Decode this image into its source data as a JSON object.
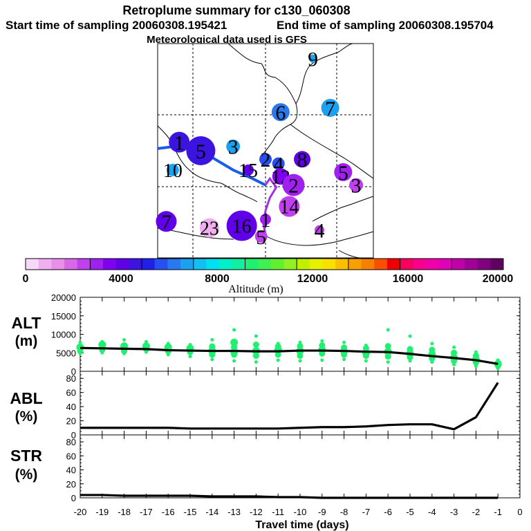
{
  "header": {
    "title": "Retroplume summary for c130_060308",
    "start_sampling": "Start time of sampling 20060308.195421",
    "end_sampling": "End time of sampling 20060308.195704",
    "met_data": "Meteorological data used is GFS"
  },
  "colors": {
    "scale": [
      "#f8d8f8",
      "#f0b0f0",
      "#e890e8",
      "#d868e8",
      "#c040f0",
      "#a020f0",
      "#8000f0",
      "#6000e8",
      "#3c14e0",
      "#2020e8",
      "#2850f0",
      "#2878f0",
      "#1ca0f0",
      "#10c0f0",
      "#00e0f0",
      "#00f0c8",
      "#10f0a0",
      "#20f070",
      "#40f050",
      "#60f030",
      "#90f020",
      "#c0f000",
      "#e8f000",
      "#f8e000",
      "#f8c000",
      "#f8a000",
      "#f88000",
      "#f85000",
      "#f00000",
      "#f80060",
      "#f8008c",
      "#f000a8",
      "#e000b8",
      "#c000a8",
      "#a00098",
      "#800080",
      "#600060"
    ],
    "trajectory": "#1a5ce8",
    "trajectory_late": "#a030e8"
  },
  "map": {
    "clusters": [
      {
        "label": "9",
        "x": 72,
        "y": 93,
        "r": 6,
        "color": "#1ca0f0"
      },
      {
        "label": "7",
        "x": 80,
        "y": 70,
        "r": 13,
        "color": "#1ca0f0"
      },
      {
        "label": "6",
        "x": 57,
        "y": 68,
        "r": 13,
        "color": "#2878f0"
      },
      {
        "label": "1",
        "x": 10,
        "y": 54,
        "r": 15,
        "color": "#3c14e0"
      },
      {
        "label": "5",
        "x": 20,
        "y": 50,
        "r": 21,
        "color": "#3c14e0"
      },
      {
        "label": "3",
        "x": 35,
        "y": 52,
        "r": 10,
        "color": "#1ca0f0"
      },
      {
        "label": "2",
        "x": 50,
        "y": 46,
        "r": 9,
        "color": "#2850f0"
      },
      {
        "label": "4",
        "x": 56,
        "y": 44,
        "r": 9,
        "color": "#2850f0"
      },
      {
        "label": "8",
        "x": 67,
        "y": 46,
        "r": 12,
        "color": "#6000e8"
      },
      {
        "label": "10",
        "x": 7,
        "y": 41,
        "r": 9,
        "color": "#1ca0f0"
      },
      {
        "label": "15",
        "x": 42,
        "y": 41,
        "r": 8,
        "color": "#6000e8"
      },
      {
        "label": "12",
        "x": 57,
        "y": 38,
        "r": 12,
        "color": "#8000f0"
      },
      {
        "label": "2",
        "x": 63,
        "y": 34,
        "r": 16,
        "color": "#a020f0"
      },
      {
        "label": "5",
        "x": 86,
        "y": 40,
        "r": 13,
        "color": "#a020f0"
      },
      {
        "label": "3",
        "x": 92,
        "y": 34,
        "r": 10,
        "color": "#c040f0"
      },
      {
        "label": "14",
        "x": 61,
        "y": 24,
        "r": 15,
        "color": "#c040f0"
      },
      {
        "label": "4",
        "x": 75,
        "y": 13,
        "r": 7,
        "color": "#c040f0"
      },
      {
        "label": "1",
        "x": 50,
        "y": 18,
        "r": 8,
        "color": "#a020f0"
      },
      {
        "label": "7",
        "x": 4,
        "y": 17,
        "r": 15,
        "color": "#6000e8"
      },
      {
        "label": "23",
        "x": 24,
        "y": 14,
        "r": 14,
        "color": "#f0b0f0"
      },
      {
        "label": "16",
        "x": 39,
        "y": 15,
        "r": 22,
        "color": "#6000e8"
      },
      {
        "label": "5",
        "x": 48,
        "y": 10,
        "r": 9,
        "color": "#c040f0"
      }
    ]
  },
  "colorbar": {
    "ticks": [
      "0",
      "4000",
      "8000",
      "12000",
      "16000",
      "20000"
    ],
    "label": "Altitude (m)"
  },
  "chart_data": [
    {
      "type": "line",
      "panel": "ALT",
      "ylabel_top": "ALT",
      "ylabel_bottom": "(m)",
      "ylim": [
        0,
        20000
      ],
      "yticks": [
        "0",
        "5000",
        "10000",
        "15000",
        "20000"
      ],
      "x": [
        -20,
        -19,
        -18,
        -17,
        -16,
        -15,
        -14,
        -13,
        -12,
        -11,
        -10,
        -9,
        -8,
        -7,
        -6,
        -5,
        -4,
        -3,
        -2,
        -1
      ],
      "values": [
        6300,
        6200,
        6100,
        6000,
        5700,
        5600,
        5500,
        5500,
        5400,
        5400,
        5600,
        5600,
        5500,
        5300,
        5200,
        4700,
        4100,
        3600,
        3000,
        2000
      ],
      "scatter": [
        {
          "x": -20,
          "y": [
            4800,
            5500,
            6500,
            7800
          ]
        },
        {
          "x": -19,
          "y": [
            5000,
            5800,
            7200,
            8000
          ]
        },
        {
          "x": -18,
          "y": [
            4800,
            5500,
            6800,
            8500
          ]
        },
        {
          "x": -17,
          "y": [
            5200,
            6000,
            6800,
            8000
          ]
        },
        {
          "x": -16,
          "y": [
            4500,
            5400,
            6500,
            7500
          ]
        },
        {
          "x": -15,
          "y": [
            4000,
            5200,
            6200,
            7200
          ]
        },
        {
          "x": -14,
          "y": [
            3200,
            4500,
            5500,
            6700,
            8500
          ]
        },
        {
          "x": -13,
          "y": [
            2800,
            4500,
            5300,
            6500,
            7800,
            11200
          ]
        },
        {
          "x": -12,
          "y": [
            2500,
            4200,
            5500,
            7200,
            9500
          ]
        },
        {
          "x": -11,
          "y": [
            3000,
            4500,
            5800,
            6700,
            7500
          ]
        },
        {
          "x": -10,
          "y": [
            2800,
            4200,
            5500,
            6800,
            7800
          ]
        },
        {
          "x": -9,
          "y": [
            3000,
            4800,
            5800,
            7000,
            8200
          ]
        },
        {
          "x": -8,
          "y": [
            3200,
            4500,
            5400,
            6400,
            7800
          ]
        },
        {
          "x": -7,
          "y": [
            2800,
            4200,
            5000,
            6200,
            7000
          ]
        },
        {
          "x": -6,
          "y": [
            2500,
            4000,
            5300,
            6800,
            11200
          ]
        },
        {
          "x": -5,
          "y": [
            2800,
            3800,
            4800,
            6000,
            9500
          ]
        },
        {
          "x": -4,
          "y": [
            2500,
            3500,
            4500,
            5800,
            7500
          ]
        },
        {
          "x": -3,
          "y": [
            1800,
            2800,
            3700,
            5000,
            6500
          ]
        },
        {
          "x": -2,
          "y": [
            1400,
            2400,
            3200,
            4200,
            5200
          ]
        },
        {
          "x": -1,
          "y": [
            800,
            1500,
            2000,
            3000
          ]
        }
      ]
    },
    {
      "type": "line",
      "panel": "ABL",
      "ylabel_top": "ABL",
      "ylabel_bottom": "(%)",
      "ylim": [
        0,
        90
      ],
      "yticks": [
        "0",
        "20",
        "40",
        "60",
        "80"
      ],
      "x": [
        -20,
        -19,
        -18,
        -17,
        -16,
        -15,
        -14,
        -13,
        -12,
        -11,
        -10,
        -9,
        -8,
        -7,
        -6,
        -5,
        -4,
        -3,
        -2,
        -1
      ],
      "values": [
        10,
        10,
        10,
        10,
        10,
        9,
        9,
        9,
        9,
        9,
        10,
        11,
        11,
        12,
        14,
        15,
        15,
        8,
        25,
        74
      ]
    },
    {
      "type": "line",
      "panel": "STR",
      "ylabel_top": "STR",
      "ylabel_bottom": "(%)",
      "ylim": [
        0,
        90
      ],
      "yticks": [
        "0",
        "20",
        "40",
        "60",
        "80"
      ],
      "x": [
        -20,
        -19,
        -18,
        -17,
        -16,
        -15,
        -14,
        -13,
        -12,
        -11,
        -10,
        -9,
        -8,
        -7,
        -6,
        -5,
        -4,
        -3,
        -2,
        -1
      ],
      "values": [
        4,
        4,
        3,
        3,
        3,
        3,
        2,
        2,
        2,
        1,
        1,
        0,
        0,
        0,
        0,
        0,
        0,
        0,
        0,
        0
      ],
      "xticks": [
        "-20",
        "-19",
        "-18",
        "-17",
        "-16",
        "-15",
        "-14",
        "-13",
        "-12",
        "-11",
        "-10",
        "-9",
        "-8",
        "-7",
        "-6",
        "-5",
        "-4",
        "-3",
        "-2",
        "-1",
        "0"
      ],
      "xlabel": "Travel time (days)",
      "xlim": [
        -20,
        0
      ]
    }
  ]
}
